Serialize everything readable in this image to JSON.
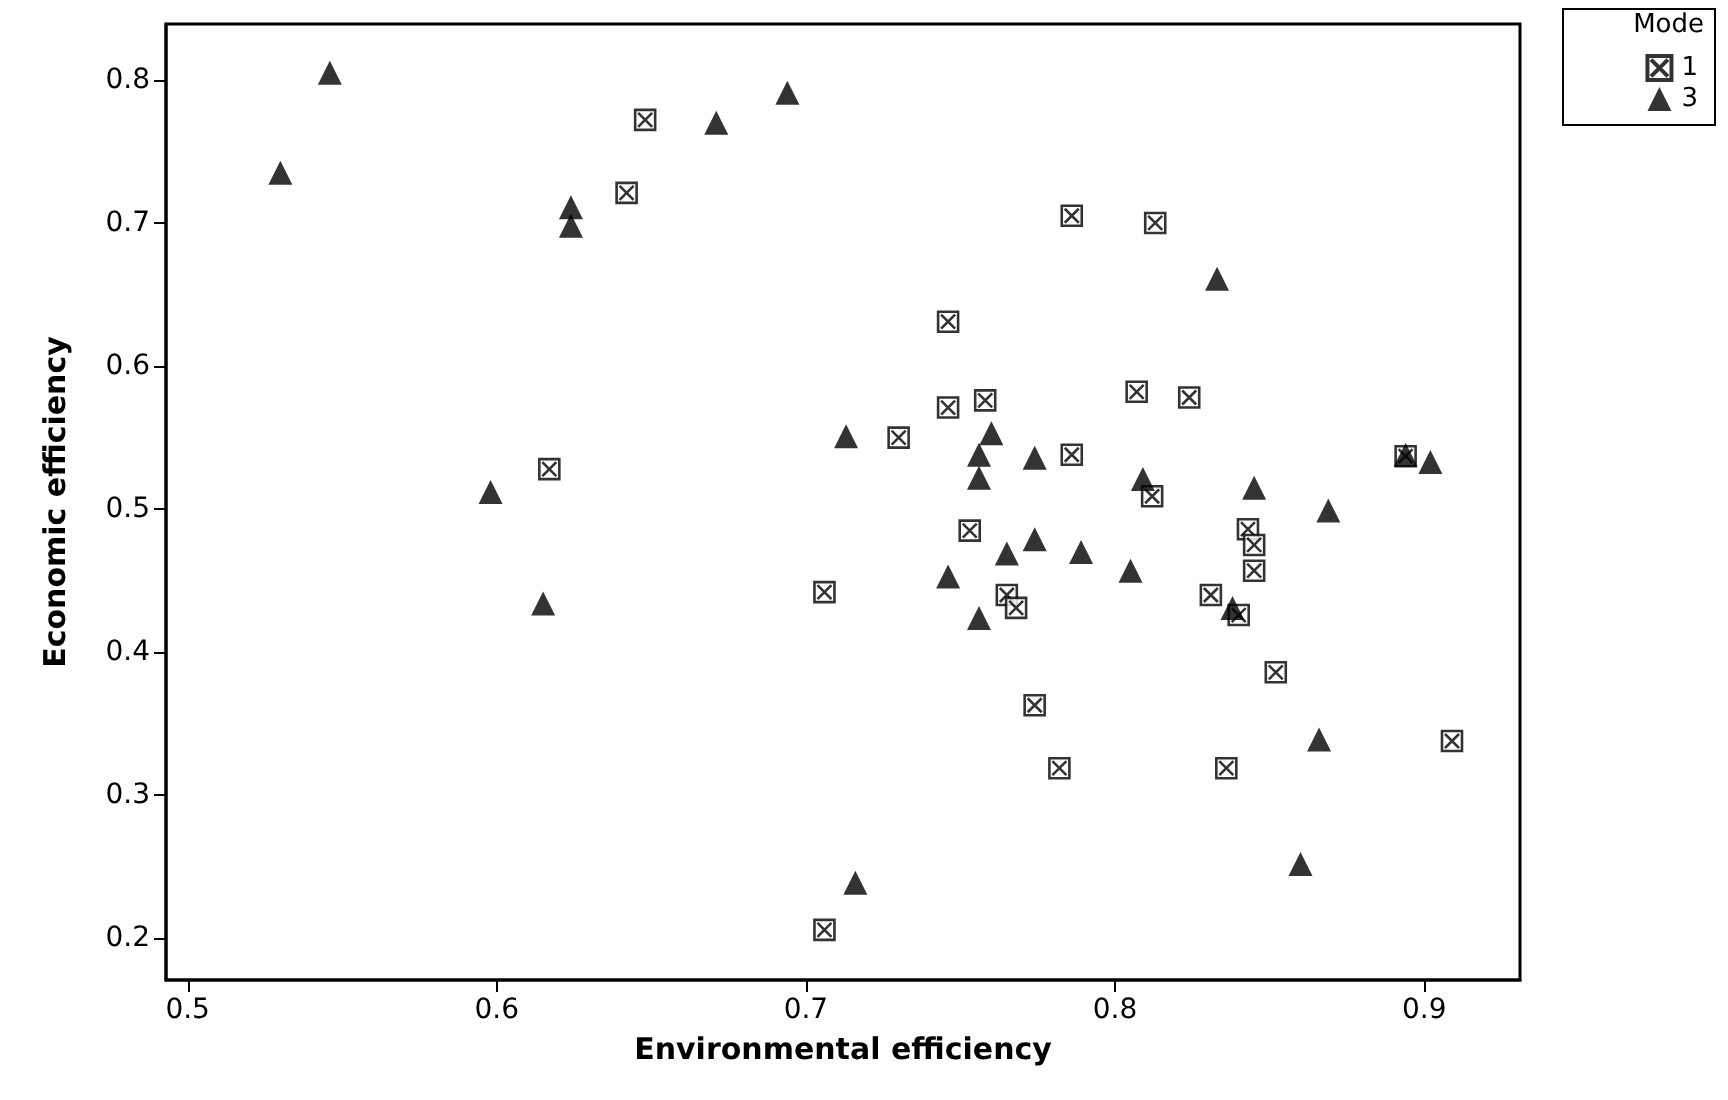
{
  "chart_data": {
    "type": "scatter",
    "xlabel": "Environmental efficiency",
    "ylabel": "Economic efficiency",
    "legend_title": "Mode",
    "legend": "top right",
    "grid": false,
    "xlim": [
      0.493,
      0.931
    ],
    "ylim": [
      0.171,
      0.839
    ],
    "xticks": [
      0.5,
      0.6,
      0.7,
      0.8,
      0.9
    ],
    "yticks": [
      0.2,
      0.3,
      0.4,
      0.5,
      0.6,
      0.7,
      0.8
    ],
    "series": [
      {
        "name": "1",
        "color": "#000000",
        "marker": "cross",
        "x": [
          0.648,
          0.642,
          0.617,
          0.786,
          0.813,
          0.746,
          0.746,
          0.758,
          0.807,
          0.73,
          0.786,
          0.812,
          0.753,
          0.706,
          0.765,
          0.768,
          0.774,
          0.782,
          0.706,
          0.824,
          0.894,
          0.843,
          0.845,
          0.845,
          0.831,
          0.84,
          0.852,
          0.909,
          0.836
        ],
        "values": [
          0.772,
          0.721,
          0.528,
          0.705,
          0.7,
          0.631,
          0.571,
          0.576,
          0.582,
          0.55,
          0.538,
          0.509,
          0.485,
          0.442,
          0.44,
          0.431,
          0.363,
          0.319,
          0.206,
          0.578,
          0.537,
          0.486,
          0.475,
          0.457,
          0.44,
          0.426,
          0.386,
          0.338,
          0.319
        ]
      },
      {
        "name": "3",
        "color": "#000000",
        "marker": "triangle",
        "x": [
          0.546,
          0.53,
          0.671,
          0.694,
          0.624,
          0.624,
          0.713,
          0.598,
          0.615,
          0.76,
          0.756,
          0.756,
          0.774,
          0.809,
          0.765,
          0.774,
          0.789,
          0.805,
          0.746,
          0.756,
          0.716,
          0.833,
          0.894,
          0.902,
          0.845,
          0.869,
          0.838,
          0.866,
          0.86
        ],
        "values": [
          0.805,
          0.735,
          0.77,
          0.791,
          0.711,
          0.698,
          0.551,
          0.512,
          0.434,
          0.553,
          0.538,
          0.522,
          0.536,
          0.521,
          0.469,
          0.479,
          0.47,
          0.457,
          0.453,
          0.424,
          0.239,
          0.661,
          0.538,
          0.533,
          0.515,
          0.499,
          0.431,
          0.339,
          0.252
        ]
      }
    ]
  }
}
